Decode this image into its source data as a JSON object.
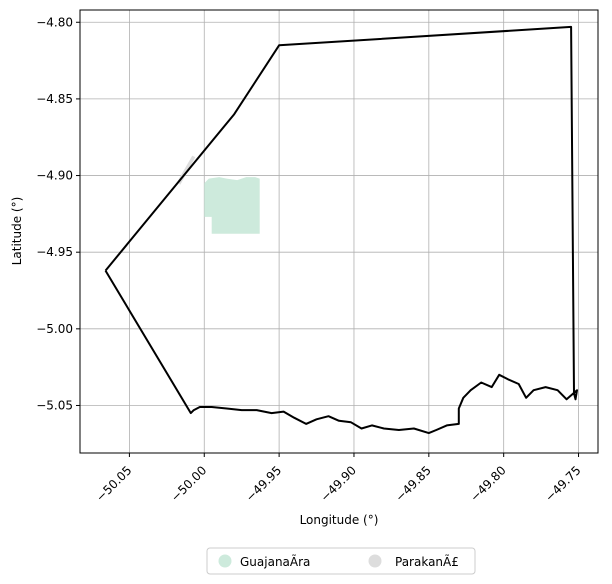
{
  "chart_data": {
    "type": "map",
    "xlabel": "Longitude (°)",
    "ylabel": "Latitude (°)",
    "xlim": [
      -50.083,
      -49.737
    ],
    "ylim": [
      -5.081,
      -4.792
    ],
    "x_ticks": [
      {
        "value": -50.05,
        "label": "−50.05"
      },
      {
        "value": -50.0,
        "label": "−50.00"
      },
      {
        "value": -49.95,
        "label": "−49.95"
      },
      {
        "value": -49.9,
        "label": "−49.90"
      },
      {
        "value": -49.85,
        "label": "−49.85"
      },
      {
        "value": -49.8,
        "label": "−49.80"
      },
      {
        "value": -49.75,
        "label": "−49.75"
      }
    ],
    "y_ticks": [
      {
        "value": -4.8,
        "label": "−4.80"
      },
      {
        "value": -4.85,
        "label": "−4.85"
      },
      {
        "value": -4.9,
        "label": "−4.90"
      },
      {
        "value": -4.95,
        "label": "−4.95"
      },
      {
        "value": -5.0,
        "label": "−5.00"
      },
      {
        "value": -5.05,
        "label": "−5.05"
      }
    ],
    "grid": true,
    "legend_position": "bottom-center",
    "series": [
      {
        "name": "GuajanaÃ­ra",
        "color": "#cdeadc",
        "polygon": [
          [
            -50.0,
            -4.927
          ],
          [
            -50.0,
            -4.905
          ],
          [
            -49.997,
            -4.902
          ],
          [
            -49.99,
            -4.901
          ],
          [
            -49.985,
            -4.902
          ],
          [
            -49.978,
            -4.903
          ],
          [
            -49.972,
            -4.901
          ],
          [
            -49.966,
            -4.901
          ],
          [
            -49.963,
            -4.902
          ],
          [
            -49.963,
            -4.938
          ],
          [
            -49.995,
            -4.938
          ],
          [
            -49.995,
            -4.927
          ]
        ]
      },
      {
        "name": "ParakanÃ£",
        "color": "#dddddd",
        "polygon": [
          [
            -50.018,
            -4.904
          ],
          [
            -50.008,
            -4.887
          ],
          [
            -50.006,
            -4.888
          ],
          [
            -50.016,
            -4.906
          ]
        ]
      }
    ],
    "outline": {
      "color": "#000000",
      "coords": [
        [
          -50.066,
          -4.962
        ],
        [
          -49.98,
          -4.86
        ],
        [
          -49.95,
          -4.815
        ],
        [
          -49.755,
          -4.803
        ],
        [
          -49.753,
          -5.042
        ],
        [
          -49.752,
          -5.046
        ],
        [
          -49.751,
          -5.04
        ],
        [
          -49.758,
          -5.046
        ],
        [
          -49.764,
          -5.04
        ],
        [
          -49.772,
          -5.038
        ],
        [
          -49.78,
          -5.04
        ],
        [
          -49.785,
          -5.045
        ],
        [
          -49.79,
          -5.036
        ],
        [
          -49.797,
          -5.033
        ],
        [
          -49.803,
          -5.03
        ],
        [
          -49.808,
          -5.038
        ],
        [
          -49.815,
          -5.035
        ],
        [
          -49.822,
          -5.04
        ],
        [
          -49.827,
          -5.045
        ],
        [
          -49.83,
          -5.052
        ],
        [
          -49.83,
          -5.062
        ],
        [
          -49.838,
          -5.063
        ],
        [
          -49.845,
          -5.066
        ],
        [
          -49.85,
          -5.068
        ],
        [
          -49.86,
          -5.065
        ],
        [
          -49.87,
          -5.066
        ],
        [
          -49.88,
          -5.065
        ],
        [
          -49.888,
          -5.063
        ],
        [
          -49.895,
          -5.065
        ],
        [
          -49.902,
          -5.061
        ],
        [
          -49.91,
          -5.06
        ],
        [
          -49.917,
          -5.057
        ],
        [
          -49.925,
          -5.059
        ],
        [
          -49.932,
          -5.062
        ],
        [
          -49.94,
          -5.058
        ],
        [
          -49.947,
          -5.054
        ],
        [
          -49.955,
          -5.055
        ],
        [
          -49.965,
          -5.053
        ],
        [
          -49.975,
          -5.053
        ],
        [
          -49.985,
          -5.052
        ],
        [
          -49.995,
          -5.051
        ],
        [
          -50.003,
          -5.051
        ],
        [
          -50.007,
          -5.053
        ],
        [
          -50.009,
          -5.055
        ],
        [
          -50.066,
          -4.962
        ]
      ]
    }
  }
}
